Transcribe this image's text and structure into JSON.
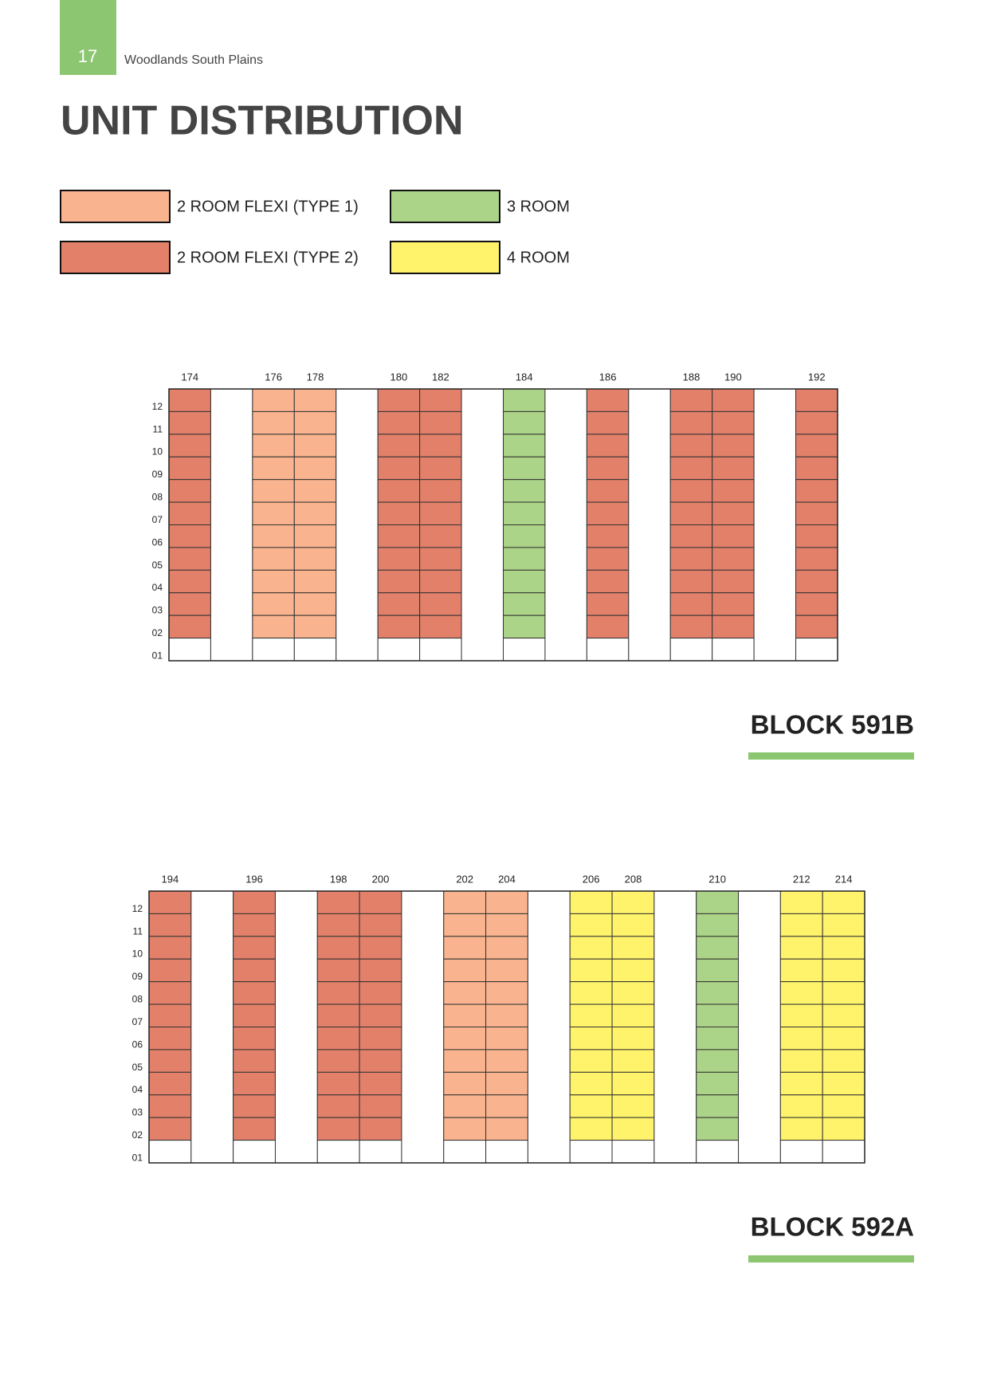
{
  "header": {
    "page_number": "17",
    "subtitle": "Woodlands South Plains",
    "title": "UNIT DISTRIBUTION"
  },
  "legend": [
    {
      "label": "2 ROOM FLEXI (TYPE 1)",
      "color": "#f9b48f"
    },
    {
      "label": "2 ROOM FLEXI (TYPE 2)",
      "color": "#e2806a"
    },
    {
      "label": "3 ROOM",
      "color": "#acd488"
    },
    {
      "label": "4 ROOM",
      "color": "#fff36b"
    }
  ],
  "blocks": [
    {
      "name": "BLOCK 591B",
      "floors": [
        "12",
        "11",
        "10",
        "09",
        "08",
        "07",
        "06",
        "05",
        "04",
        "03",
        "02",
        "01"
      ],
      "columns": [
        {
          "unit": "174",
          "legend": 1
        },
        null,
        {
          "unit": "176",
          "legend": 0
        },
        {
          "unit": "178",
          "legend": 0
        },
        null,
        {
          "unit": "180",
          "legend": 1
        },
        {
          "unit": "182",
          "legend": 1
        },
        null,
        {
          "unit": "184",
          "legend": 2
        },
        null,
        {
          "unit": "186",
          "legend": 1
        },
        null,
        {
          "unit": "188",
          "legend": 1
        },
        {
          "unit": "190",
          "legend": 1
        },
        null,
        {
          "unit": "192",
          "legend": 1
        }
      ]
    },
    {
      "name": "BLOCK 592A",
      "floors": [
        "12",
        "11",
        "10",
        "09",
        "08",
        "07",
        "06",
        "05",
        "04",
        "03",
        "02",
        "01"
      ],
      "columns": [
        {
          "unit": "194",
          "legend": 1
        },
        null,
        {
          "unit": "196",
          "legend": 1
        },
        null,
        {
          "unit": "198",
          "legend": 1
        },
        {
          "unit": "200",
          "legend": 1
        },
        null,
        {
          "unit": "202",
          "legend": 0
        },
        {
          "unit": "204",
          "legend": 0
        },
        null,
        {
          "unit": "206",
          "legend": 3
        },
        {
          "unit": "208",
          "legend": 3
        },
        null,
        {
          "unit": "210",
          "legend": 2
        },
        null,
        {
          "unit": "212",
          "legend": 3
        },
        {
          "unit": "214",
          "legend": 3
        }
      ]
    }
  ]
}
